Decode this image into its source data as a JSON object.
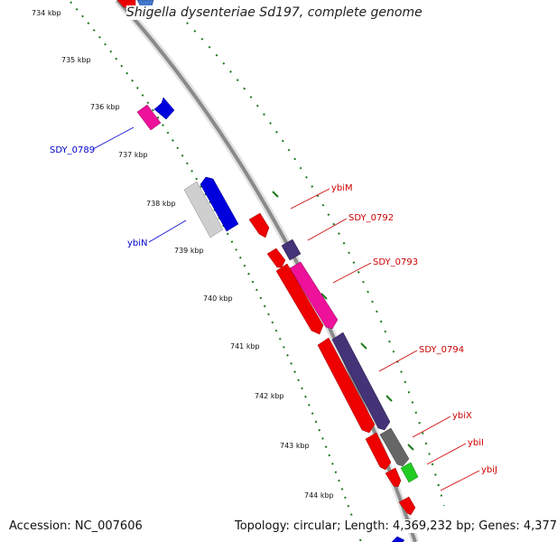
{
  "title": "Shigella dysenteriae Sd197, complete genome",
  "footer": {
    "accession": "Accession: NC_007606",
    "summary": "Topology: circular; Length: 4,369,232 bp; Genes: 4,377"
  },
  "scale_labels": [
    "734 kbp",
    "735 kbp",
    "736 kbp",
    "737 kbp",
    "738 kbp",
    "739 kbp",
    "740 kbp",
    "741 kbp",
    "742 kbp",
    "743 kbp",
    "744 kbp"
  ],
  "gene_labels": {
    "reverse": [
      "SDY_0789",
      "ybiN"
    ],
    "forward": [
      "ybiM",
      "SDY_0792",
      "SDY_0793",
      "SDY_0794",
      "ybiX",
      "ybiI",
      "ybiJ"
    ]
  },
  "colors": {
    "backbone": "#8a8a8a",
    "tick": "#1a7a1a",
    "forward_label": "#cc0000",
    "reverse_label": "#0000cc",
    "gene_red": "#ee0000",
    "gene_magenta": "#ee1199",
    "gene_navy": "#443377",
    "gene_blue": "#0000dd",
    "gene_lightgray": "#cfcfcf",
    "gene_gray": "#666666",
    "gene_green": "#22cc22"
  }
}
